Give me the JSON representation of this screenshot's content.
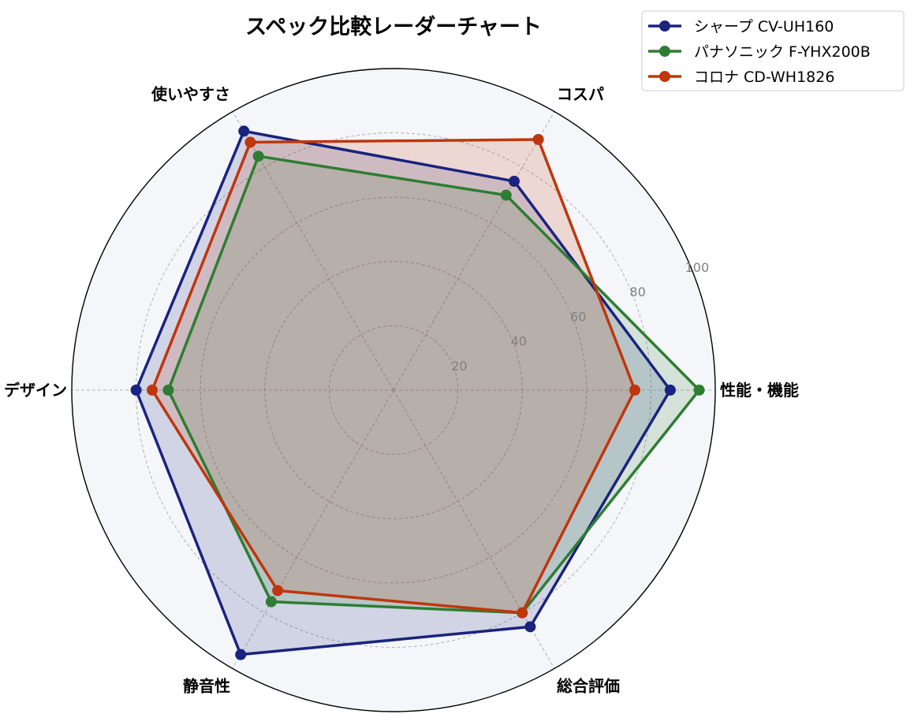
{
  "chart_data": {
    "type": "radar",
    "title": "スペック比較レーダーチャート",
    "axes": [
      "性能・機能",
      "コスパ",
      "使いやすさ",
      "デザイン",
      "静音性",
      "総合評価"
    ],
    "rlim": [
      0,
      100
    ],
    "rticks": [
      20,
      40,
      60,
      80,
      100
    ],
    "grid": true,
    "legend_position": "top-right",
    "series": [
      {
        "name": "シャープ CV-UH160",
        "values": [
          86,
          75,
          93,
          80,
          95,
          85
        ],
        "color": "#1a237e"
      },
      {
        "name": "パナソニック F-YHX200B",
        "values": [
          95,
          70,
          84,
          70,
          76,
          80
        ],
        "color": "#2e7d32"
      },
      {
        "name": "コロナ CD-WH1826",
        "values": [
          75,
          90,
          89,
          75,
          72,
          80
        ],
        "color": "#bf360c"
      }
    ],
    "colors": {
      "plot_background": "#f5f6fa",
      "grid": "#a0a0a0",
      "frame": "#000000"
    }
  }
}
